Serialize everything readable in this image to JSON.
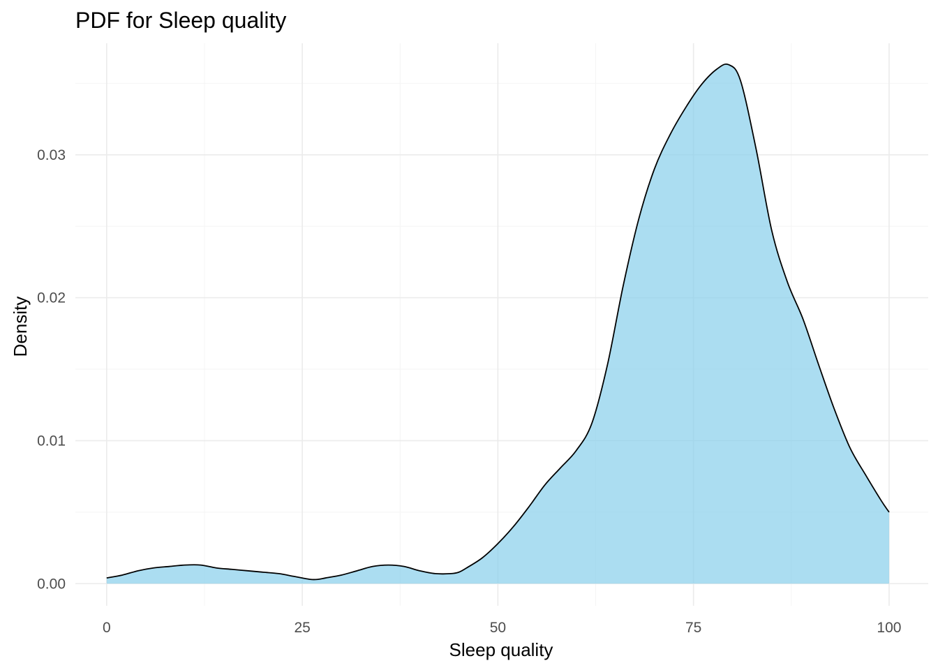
{
  "chart_data": {
    "type": "area",
    "title": "PDF for Sleep quality",
    "xlabel": "Sleep quality",
    "ylabel": "Density",
    "xlim": [
      -4,
      105
    ],
    "ylim": [
      -0.00155,
      0.0378
    ],
    "x_ticks": [
      0,
      25,
      50,
      75,
      100
    ],
    "x_tick_labels": [
      "0",
      "25",
      "50",
      "75",
      "100"
    ],
    "y_ticks": [
      0,
      0.01,
      0.02,
      0.03
    ],
    "y_tick_labels": [
      "0.00",
      "0.01",
      "0.02",
      "0.03"
    ],
    "grid": true,
    "fill_color": "#87CEEB",
    "fill_opacity": 0.7,
    "line_color": "#000000",
    "series": [
      {
        "x": [
          0,
          2,
          4,
          6,
          8,
          10,
          12,
          14,
          16,
          18,
          20,
          22,
          24,
          26,
          27,
          28,
          30,
          32,
          34,
          36,
          38,
          40,
          42,
          44,
          45,
          46,
          48,
          50,
          52,
          54,
          56,
          58,
          60,
          62,
          64,
          66,
          68,
          70,
          72,
          74,
          76,
          78,
          79.5,
          81,
          83,
          85,
          87,
          89,
          91,
          93,
          95,
          97,
          99,
          100
        ],
        "y": [
          0.0004,
          0.0006,
          0.0009,
          0.0011,
          0.0012,
          0.0013,
          0.0013,
          0.0011,
          0.001,
          0.0009,
          0.0008,
          0.0007,
          0.0005,
          0.0003,
          0.0003,
          0.0004,
          0.0006,
          0.0009,
          0.0012,
          0.0013,
          0.0012,
          0.0009,
          0.0007,
          0.0007,
          0.0008,
          0.0011,
          0.0018,
          0.0028,
          0.004,
          0.0054,
          0.0069,
          0.0081,
          0.0093,
          0.0112,
          0.0153,
          0.0208,
          0.0255,
          0.029,
          0.0314,
          0.0333,
          0.0349,
          0.036,
          0.0363,
          0.0352,
          0.0304,
          0.0247,
          0.0211,
          0.0185,
          0.0153,
          0.0122,
          0.0095,
          0.0076,
          0.0058,
          0.005
        ]
      }
    ]
  }
}
